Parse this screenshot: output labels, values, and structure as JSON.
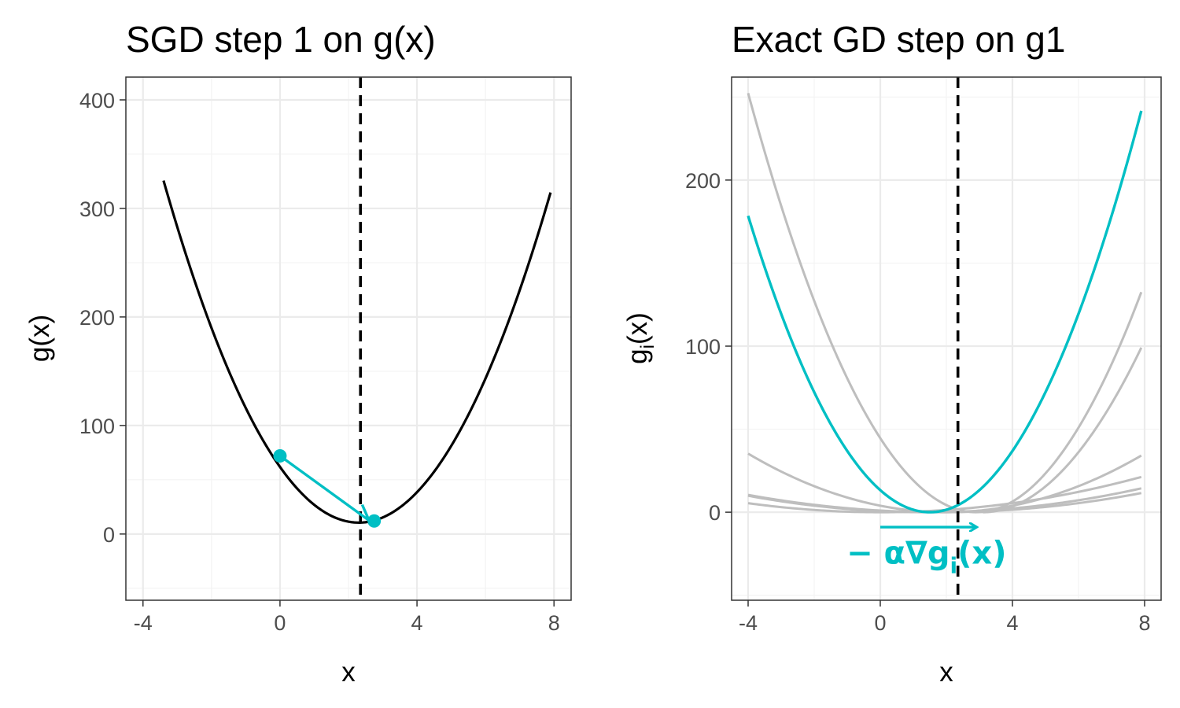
{
  "colors": {
    "accent": "#00BFC4",
    "curve": "#000000",
    "faded": "#BEBEBE",
    "vline": "#000000"
  },
  "chart_data": [
    {
      "type": "line",
      "title": "SGD step 1 on g(x)",
      "xlabel": "x",
      "ylabel": "g(x)",
      "xlim": [
        -4.5,
        8.5
      ],
      "ylim": [
        -61,
        421
      ],
      "xticks": [
        -4,
        0,
        4,
        8
      ],
      "yticks": [
        0,
        100,
        200,
        300,
        400
      ],
      "xtick_labels": [
        "-4",
        "0",
        "4",
        "8"
      ],
      "ytick_labels": [
        "0",
        "100",
        "200",
        "300",
        "400"
      ],
      "grid": true,
      "vline_x": 2.35,
      "series": [
        {
          "role": "objective",
          "quadratic": {
            "a": 9.7,
            "h": 2.3,
            "k": 10.5
          },
          "x_range": [
            -3.4,
            7.9
          ]
        }
      ],
      "sgd_points": [
        {
          "x": 0.0,
          "y": 72
        },
        {
          "x": 2.75,
          "y": 12
        }
      ],
      "zigzag": [
        {
          "x": 0.0,
          "y": 72
        },
        {
          "x": 2.6,
          "y": 12.5
        },
        {
          "x": 2.4,
          "y": 27
        }
      ]
    },
    {
      "type": "line",
      "title": "Exact GD step on g1",
      "xlabel": "x",
      "ylabel": "g",
      "ylabel_sub": "i",
      "ylabel_tail": "(x)",
      "xlim": [
        -4.5,
        8.5
      ],
      "ylim": [
        -53,
        262
      ],
      "xticks": [
        -4,
        0,
        4,
        8
      ],
      "yticks": [
        0,
        100,
        200
      ],
      "xtick_labels": [
        "-4",
        "0",
        "4",
        "8"
      ],
      "ytick_labels": [
        "0",
        "100",
        "200"
      ],
      "grid": true,
      "vline_x": 2.35,
      "series": [
        {
          "role": "highlighted",
          "quadratic": {
            "a": 5.9,
            "h": 1.5,
            "k": 0
          },
          "x_range": [
            -4,
            7.9
          ]
        },
        {
          "role": "faded",
          "quadratic": {
            "a": 5.3,
            "h": 2.9,
            "k": 0
          },
          "x_range": [
            -4,
            7.9
          ]
        },
        {
          "role": "faded",
          "quadratic": {
            "a": 4.3,
            "h": 3.1,
            "k": 0
          },
          "x_range": [
            3.1,
            7.9
          ]
        },
        {
          "role": "faded",
          "quadratic": {
            "a": 0.34,
            "h": 0.0,
            "k": 0
          },
          "x_range": [
            -4,
            7.9
          ]
        },
        {
          "role": "faded",
          "quadratic": {
            "a": 0.31,
            "h": 1.8,
            "k": 0
          },
          "x_range": [
            -4,
            7.9
          ]
        },
        {
          "role": "faded",
          "quadratic": {
            "a": 0.34,
            "h": 1.4,
            "k": 0
          },
          "x_range": [
            -4,
            7.9
          ]
        },
        {
          "role": "faded",
          "quadratic": {
            "a": 0.98,
            "h": 2.0,
            "k": 0
          },
          "x_range": [
            -4,
            7.9
          ]
        }
      ],
      "step_arrow": {
        "x0": 0.0,
        "x1": 2.9,
        "y": -9
      },
      "annotation": {
        "prefix": "− α∇g",
        "sub": "i",
        "suffix": "(x)",
        "x": 1.4,
        "y": -31
      }
    }
  ]
}
